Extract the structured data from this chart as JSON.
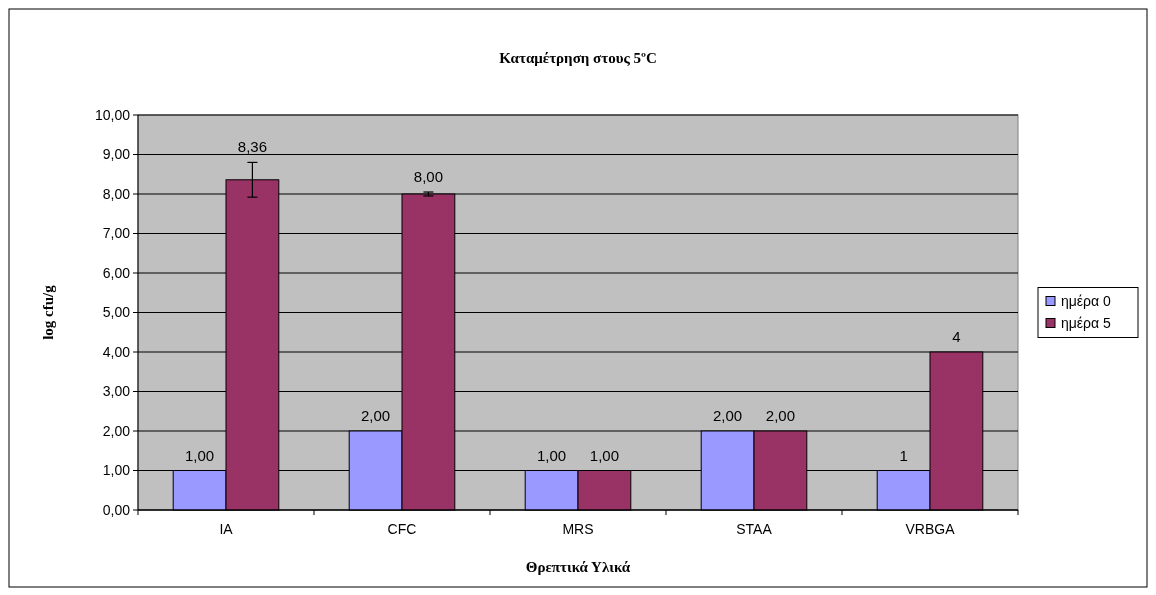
{
  "chart_data": {
    "type": "bar",
    "title": "Καταμέτρηση στους 5ºC",
    "xlabel": "Θρεπτικά Υλικά",
    "ylabel": "log cfu/g",
    "categories": [
      "IA",
      "CFC",
      "MRS",
      "STAA",
      "VRBGA"
    ],
    "series": [
      {
        "name": "ημέρα 0",
        "color": "#9999ff",
        "values": [
          1,
          2,
          1,
          2,
          1
        ],
        "value_labels": [
          "1,00",
          "2,00",
          "1,00",
          "2,00",
          "1"
        ]
      },
      {
        "name": "ημέρα 5",
        "color": "#993366",
        "values": [
          8.36,
          8,
          1,
          2,
          4
        ],
        "value_labels": [
          "8,36",
          "8,00",
          "1,00",
          "2,00",
          "4"
        ],
        "errors": [
          0.44,
          0.05,
          null,
          null,
          null
        ]
      }
    ],
    "ylim": [
      0,
      10
    ],
    "yticks": [
      {
        "value": 0,
        "label": "0,00"
      },
      {
        "value": 1,
        "label": "1,00"
      },
      {
        "value": 2,
        "label": "2,00"
      },
      {
        "value": 3,
        "label": "3,00"
      },
      {
        "value": 4,
        "label": "4,00"
      },
      {
        "value": 5,
        "label": "5,00"
      },
      {
        "value": 6,
        "label": "6,00"
      },
      {
        "value": 7,
        "label": "7,00"
      },
      {
        "value": 8,
        "label": "8,00"
      },
      {
        "value": 9,
        "label": "9,00"
      },
      {
        "value": 10,
        "label": "10,00"
      }
    ],
    "grid": "y",
    "legend": "right"
  }
}
